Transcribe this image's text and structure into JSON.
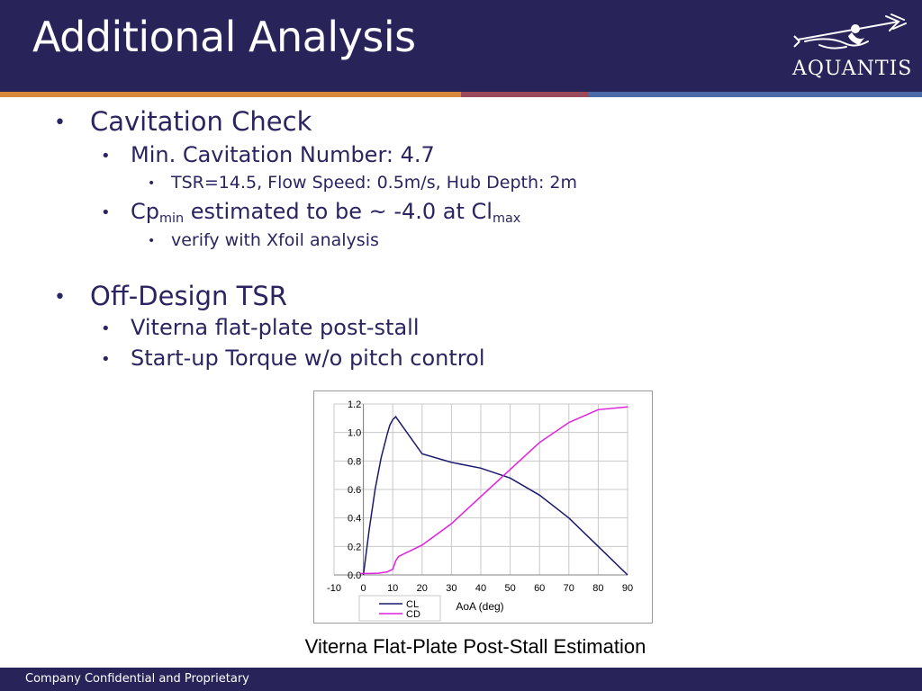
{
  "slide": {
    "title": "Additional Analysis",
    "logo_text": "AQUANTIS",
    "footer": "Company Confidential and Proprietary"
  },
  "bullets": {
    "cavitation_heading": "Cavitation Check",
    "min_cavitation": "Min. Cavitation Number: 4.7",
    "conditions": "TSR=14.5, Flow Speed: 0.5m/s, Hub Depth: 2m",
    "cp_prefix": "Cp",
    "cp_sub": "min",
    "cp_middle": " estimated to be ~ -4.0 at Cl",
    "cp_sub2": "max",
    "xfoil": "verify with Xfoil analysis",
    "offdesign_heading": "Off-Design TSR",
    "viterna": "Viterna flat-plate post-stall",
    "startup": "Start-up Torque w/o pitch control",
    "bullet_char": "•"
  },
  "chart_caption": "Viterna Flat-Plate Post-Stall Estimation",
  "chart_data": {
    "type": "line",
    "title": "",
    "xlabel": "AoA (deg)",
    "ylabel": "",
    "xlim": [
      -10,
      90
    ],
    "ylim": [
      0,
      1.2
    ],
    "x_ticks": [
      "-10",
      "0",
      "10",
      "20",
      "30",
      "40",
      "50",
      "60",
      "70",
      "80",
      "90"
    ],
    "y_ticks": [
      "0.0",
      "0.2",
      "0.4",
      "0.6",
      "0.8",
      "1.0",
      "1.2"
    ],
    "grid": true,
    "legend_position": "bottom-left",
    "series": [
      {
        "name": "CL",
        "color": "#1a1a6e",
        "x": [
          0,
          2,
          4,
          6,
          8,
          9,
          10,
          11,
          20,
          30,
          40,
          50,
          60,
          70,
          80,
          90
        ],
        "y": [
          0.0,
          0.32,
          0.6,
          0.82,
          0.98,
          1.05,
          1.09,
          1.11,
          0.85,
          0.79,
          0.75,
          0.68,
          0.56,
          0.4,
          0.2,
          0.0
        ]
      },
      {
        "name": "CD",
        "color": "#e020e0",
        "x": [
          -1,
          2,
          5,
          8,
          10,
          11,
          12,
          20,
          30,
          40,
          50,
          60,
          70,
          80,
          90
        ],
        "y": [
          0.01,
          0.01,
          0.012,
          0.02,
          0.04,
          0.1,
          0.13,
          0.21,
          0.36,
          0.55,
          0.74,
          0.93,
          1.07,
          1.16,
          1.18
        ]
      }
    ]
  }
}
